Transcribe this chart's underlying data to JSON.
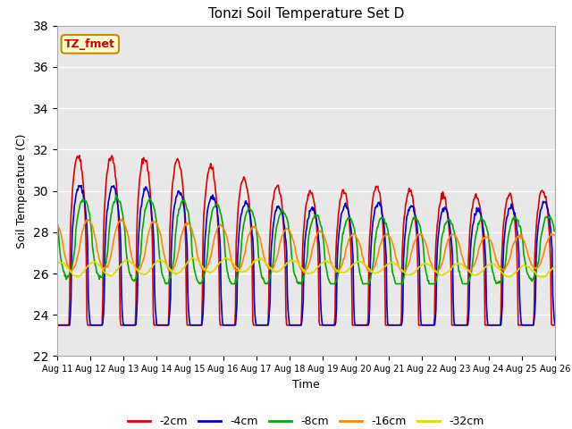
{
  "title": "Tonzi Soil Temperature Set D",
  "xlabel": "Time",
  "ylabel": "Soil Temperature (C)",
  "ylim": [
    22,
    38
  ],
  "yticks": [
    22,
    24,
    26,
    28,
    30,
    32,
    34,
    36,
    38
  ],
  "xtick_labels": [
    "Aug 11",
    "Aug 12",
    "Aug 13",
    "Aug 14",
    "Aug 15",
    "Aug 16",
    "Aug 17",
    "Aug 18",
    "Aug 19",
    "Aug 20",
    "Aug 21",
    "Aug 22",
    "Aug 23",
    "Aug 24",
    "Aug 25",
    "Aug 26"
  ],
  "annotation_text": "TZ_fmet",
  "annotation_bbox_facecolor": "#ffffcc",
  "annotation_bbox_edgecolor": "#cc8800",
  "annotation_text_color": "#cc0000",
  "series_colors": [
    "#dd0000",
    "#0000cc",
    "#00aa00",
    "#ff8800",
    "#dddd00"
  ],
  "series_labels": [
    "-2cm",
    "-4cm",
    "-8cm",
    "-16cm",
    "-32cm"
  ],
  "background_color": "#e8e8e8",
  "line_width": 1.2
}
